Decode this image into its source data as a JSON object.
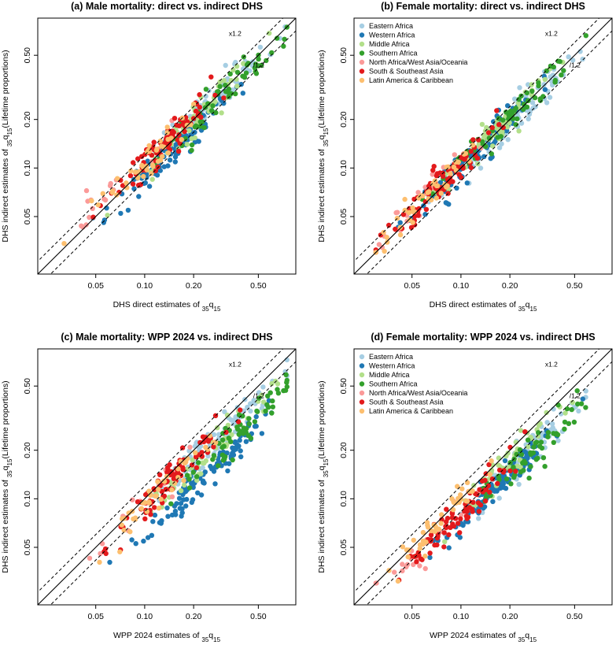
{
  "panels": [
    {
      "title": "(a) Male mortality: direct vs. indirect DHS",
      "xlabel_main": "DHS direct estimates of ",
      "ylabel_main": "DHS indirect estimates of ",
      "ylabel_suffix": "(Lifetime proportions)",
      "seed": 11,
      "shape": "male_direct",
      "show_legend": false
    },
    {
      "title": "(b) Female mortality: direct vs. indirect DHS",
      "xlabel_main": "DHS direct estimates of ",
      "ylabel_main": "DHS indirect estimates of ",
      "ylabel_suffix": "(Lifetime proportions)",
      "seed": 23,
      "shape": "female_direct",
      "show_legend": true
    },
    {
      "title": "(c) Male mortality: WPP 2024 vs. indirect DHS",
      "xlabel_main": "WPP 2024 estimates of ",
      "ylabel_main": "DHS indirect estimates of ",
      "ylabel_suffix": "(Lifetime proportions)",
      "seed": 37,
      "shape": "male_wpp",
      "show_legend": false
    },
    {
      "title": "(d) Female mortality: WPP 2024 vs. indirect DHS",
      "xlabel_main": "WPP 2024 estimates of ",
      "ylabel_main": "DHS indirect estimates of ",
      "ylabel_suffix": "(Lifetime proportions)",
      "seed": 53,
      "shape": "female_wpp",
      "show_legend": true
    }
  ],
  "measure": {
    "pre_sub": "35",
    "letter": "q",
    "post_sub": "15"
  },
  "reference_lines": {
    "upper_label": "x1.2",
    "lower_label": "/1.2",
    "factor": 1.2
  },
  "legend": [
    {
      "name": "Eastern Africa",
      "color": "#a6cee3"
    },
    {
      "name": "Western Africa",
      "color": "#1f78b4"
    },
    {
      "name": "Middle Africa",
      "color": "#b2df8a"
    },
    {
      "name": "Southern Africa",
      "color": "#33a02c"
    },
    {
      "name": "North Africa/West Asia/Oceania",
      "color": "#fb9a99"
    },
    {
      "name": "South & Southeast Asia",
      "color": "#e31a1c"
    },
    {
      "name": "Latin America & Caribbean",
      "color": "#fdbf6f"
    }
  ],
  "chart_data": [
    {
      "type": "scatter",
      "scale": "log-log",
      "title": "(a) Male mortality: direct vs. indirect DHS",
      "xlabel": "DHS direct estimates of 35q15",
      "ylabel": "DHS indirect estimates of 35q15(Lifetime proportions)",
      "xlim": [
        0.022,
        0.85
      ],
      "ylim": [
        0.022,
        0.85
      ],
      "ticks": [
        0.05,
        0.1,
        0.2,
        0.5
      ],
      "tick_labels": [
        "0.05",
        "0.10",
        "0.20",
        "0.50"
      ],
      "lines": [
        "y = x",
        "y = 1.2x",
        "y = x/1.2"
      ],
      "series_centers_xy": {
        "Eastern Africa": [
          0.25,
          0.25
        ],
        "Western Africa": [
          0.15,
          0.13
        ],
        "Middle Africa": [
          0.2,
          0.2
        ],
        "Southern Africa": [
          0.3,
          0.28
        ],
        "North Africa/West Asia/Oceania": [
          0.08,
          0.09
        ],
        "South & Southeast Asia": [
          0.13,
          0.14
        ],
        "Latin America & Caribbean": [
          0.1,
          0.11
        ]
      }
    },
    {
      "type": "scatter",
      "scale": "log-log",
      "title": "(b) Female mortality: direct vs. indirect DHS",
      "xlabel": "DHS direct estimates of 35q15",
      "ylabel": "DHS indirect estimates of 35q15(Lifetime proportions)",
      "xlim": [
        0.022,
        0.85
      ],
      "ylim": [
        0.022,
        0.85
      ],
      "ticks": [
        0.05,
        0.1,
        0.2,
        0.5
      ],
      "tick_labels": [
        "0.05",
        "0.10",
        "0.20",
        "0.50"
      ],
      "lines": [
        "y = x",
        "y = 1.2x",
        "y = x/1.2"
      ],
      "series_centers_xy": {
        "Eastern Africa": [
          0.2,
          0.19
        ],
        "Western Africa": [
          0.12,
          0.12
        ],
        "Middle Africa": [
          0.16,
          0.17
        ],
        "Southern Africa": [
          0.2,
          0.21
        ],
        "North Africa/West Asia/Oceania": [
          0.05,
          0.055
        ],
        "South & Southeast Asia": [
          0.07,
          0.075
        ],
        "Latin America & Caribbean": [
          0.06,
          0.065
        ]
      }
    },
    {
      "type": "scatter",
      "scale": "log-log",
      "title": "(c) Male mortality: WPP 2024 vs. indirect DHS",
      "xlabel": "WPP 2024 estimates of 35q15",
      "ylabel": "DHS indirect estimates of 35q15(Lifetime proportions)",
      "xlim": [
        0.022,
        0.85
      ],
      "ylim": [
        0.022,
        0.85
      ],
      "ticks": [
        0.05,
        0.1,
        0.2,
        0.5
      ],
      "tick_labels": [
        "0.05",
        "0.10",
        "0.20",
        "0.50"
      ],
      "lines": [
        "y = x",
        "y = 1.2x",
        "y = x/1.2"
      ],
      "series_centers_xy": {
        "Eastern Africa": [
          0.3,
          0.25
        ],
        "Western Africa": [
          0.22,
          0.13
        ],
        "Middle Africa": [
          0.25,
          0.2
        ],
        "Southern Africa": [
          0.4,
          0.28
        ],
        "North Africa/West Asia/Oceania": [
          0.11,
          0.1
        ],
        "South & Southeast Asia": [
          0.15,
          0.14
        ],
        "Latin America & Caribbean": [
          0.13,
          0.12
        ]
      }
    },
    {
      "type": "scatter",
      "scale": "log-log",
      "title": "(d) Female mortality: WPP 2024 vs. indirect DHS",
      "xlabel": "WPP 2024 estimates of 35q15",
      "ylabel": "DHS indirect estimates of 35q15(Lifetime proportions)",
      "xlim": [
        0.022,
        0.85
      ],
      "ylim": [
        0.022,
        0.85
      ],
      "ticks": [
        0.05,
        0.1,
        0.2,
        0.5
      ],
      "tick_labels": [
        "0.05",
        "0.10",
        "0.20",
        "0.50"
      ],
      "lines": [
        "y = x",
        "y = 1.2x",
        "y = x/1.2"
      ],
      "series_centers_xy": {
        "Eastern Africa": [
          0.25,
          0.19
        ],
        "Western Africa": [
          0.17,
          0.12
        ],
        "Middle Africa": [
          0.2,
          0.17
        ],
        "Southern Africa": [
          0.3,
          0.21
        ],
        "North Africa/West Asia/Oceania": [
          0.06,
          0.05
        ],
        "South & Southeast Asia": [
          0.1,
          0.08
        ],
        "Latin America & Caribbean": [
          0.07,
          0.07
        ]
      }
    }
  ]
}
